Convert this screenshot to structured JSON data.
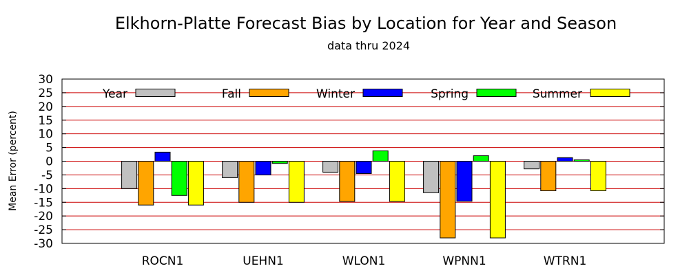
{
  "chart_data": {
    "type": "bar",
    "title": "Elkhorn-Platte Forecast Bias by Location for Year and Season",
    "subtitle": "data thru 2024",
    "xlabel": "",
    "ylabel": "Mean Error (percent)",
    "ylim": [
      -30,
      30
    ],
    "yticks": [
      30,
      25,
      20,
      15,
      10,
      5,
      0,
      -5,
      -10,
      -15,
      -20,
      -25,
      -30
    ],
    "grid": true,
    "legend_position": "top",
    "categories": [
      "ROCN1",
      "UEHN1",
      "WLON1",
      "WPNN1",
      "WTRN1"
    ],
    "series": [
      {
        "name": "Year",
        "color": "#c0c0c0",
        "values": [
          -10,
          -6,
          -4,
          -11.5,
          -2.8
        ]
      },
      {
        "name": "Fall",
        "color": "#ffa500",
        "values": [
          -16,
          -15,
          -14.7,
          -28,
          -10.8
        ]
      },
      {
        "name": "Winter",
        "color": "#0000ff",
        "values": [
          3.3,
          -5,
          -4.5,
          -14.6,
          1.3
        ]
      },
      {
        "name": "Spring",
        "color": "#00ff00",
        "values": [
          -12.5,
          -0.8,
          3.8,
          2,
          0.5
        ]
      },
      {
        "name": "Summer",
        "color": "#ffff00",
        "values": [
          -16,
          -15,
          -14.7,
          -28,
          -10.8
        ]
      }
    ]
  }
}
